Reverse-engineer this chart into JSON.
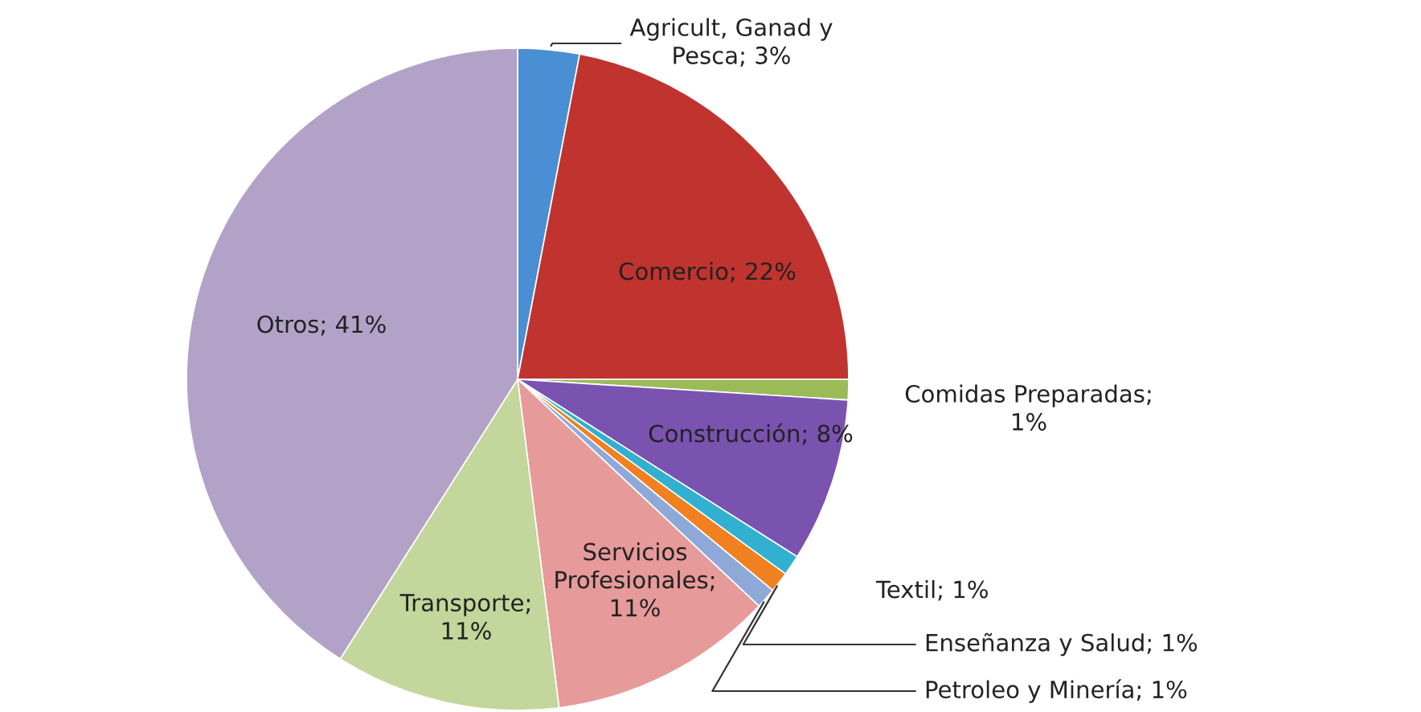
{
  "chart_data": {
    "type": "pie",
    "categories": [
      "Agricult, Ganad y Pesca",
      "Comercio",
      "Comidas Preparadas",
      "Construcción",
      "Textil",
      "Enseñanza y Salud",
      "Petroleo y Minería",
      "Servicios Profesionales",
      "Transporte",
      "Otros"
    ],
    "values": [
      3,
      22,
      1,
      8,
      1,
      1,
      1,
      11,
      11,
      41
    ],
    "value_labels": [
      "; 3%",
      "; 22%",
      "; 1%",
      "; 8%",
      "; 1%",
      "; 1%",
      "; 1%",
      "; 11%",
      "; 11%",
      "; 41%"
    ],
    "colors": [
      "#4a8fd4",
      "#c0332f",
      "#9bbb59",
      "#7a52b0",
      "#31b0d0",
      "#f08020",
      "#8ea8d8",
      "#e69a9a",
      "#c3d69b",
      "#b3a2c7"
    ]
  }
}
